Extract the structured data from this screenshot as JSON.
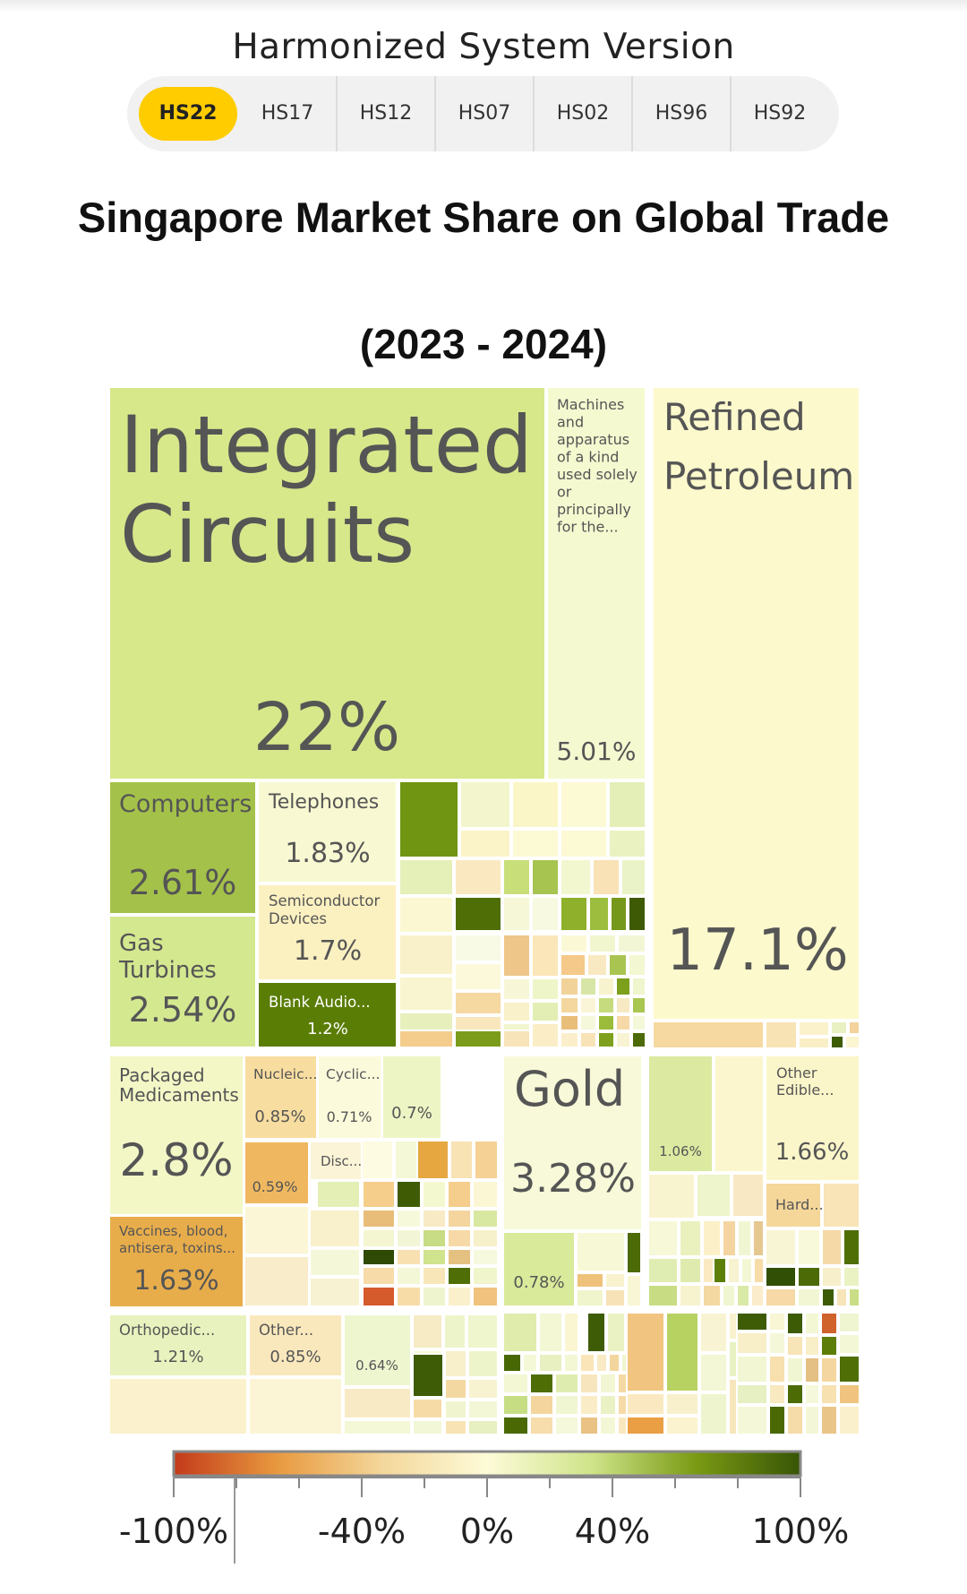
{
  "header": {
    "title": "Harmonized System Version",
    "tabs": [
      {
        "label": "HS22",
        "active": true
      },
      {
        "label": "HS17",
        "active": false
      },
      {
        "label": "HS12",
        "active": false
      },
      {
        "label": "HS07",
        "active": false
      },
      {
        "label": "HS02",
        "active": false
      },
      {
        "label": "HS96",
        "active": false
      },
      {
        "label": "HS92",
        "active": false
      }
    ],
    "active_color": "#ffcc00"
  },
  "chart": {
    "title": "Singapore Market Share on Global Trade",
    "years": "(2023 - 2024)"
  },
  "chart_data": {
    "type": "treemap",
    "color_metric_range": [
      -100,
      100
    ],
    "items": [
      {
        "name": "Integrated Circuits",
        "share": "22%",
        "color": "#d6e88a"
      },
      {
        "name": "Machines and apparatus of a kind used solely or principally for the...",
        "share": "5.01%",
        "color": "#f5f9d0"
      },
      {
        "name": "Refined Petroleum",
        "share": "17.1%",
        "color": "#fcf9cc"
      },
      {
        "name": "Computers",
        "share": "2.61%",
        "color": "#a4c24a"
      },
      {
        "name": "Telephones",
        "share": "1.83%",
        "color": "#f8f8d2"
      },
      {
        "name": "Semiconductor Devices",
        "share": "1.7%",
        "color": "#fbf0c0"
      },
      {
        "name": "Gas Turbines",
        "share": "2.54%",
        "color": "#d4e890"
      },
      {
        "name": "Blank Audio...",
        "share": "1.2%",
        "color": "#5a7d05"
      },
      {
        "name": "Packaged Medicaments",
        "share": "2.8%",
        "color": "#f3f7c6"
      },
      {
        "name": "Nucleic...",
        "share": "0.85%",
        "color": "#f8dda0"
      },
      {
        "name": "Cyclic...",
        "share": "0.71%",
        "color": "#fbfadb"
      },
      {
        "name": "",
        "share": "0.7%",
        "color": "#eef5c5"
      },
      {
        "name": "Disc...",
        "share": "",
        "color": "#fbf4d6"
      },
      {
        "name": "",
        "share": "0.59%",
        "color": "#efb860"
      },
      {
        "name": "Vaccines, blood, antisera, toxins...",
        "share": "1.63%",
        "color": "#e8ad4b"
      },
      {
        "name": "Gold",
        "share": "3.28%",
        "color": "#f8f9d8"
      },
      {
        "name": "",
        "share": "0.78%",
        "color": "#d9ea9b"
      },
      {
        "name": "",
        "share": "1.06%",
        "color": "#dbeaa0"
      },
      {
        "name": "Other Edible...",
        "share": "1.66%",
        "color": "#fbf6c9"
      },
      {
        "name": "Hard...",
        "share": "",
        "color": "#f5d79a"
      },
      {
        "name": "Orthopedic...",
        "share": "1.21%",
        "color": "#e8f2be"
      },
      {
        "name": "Other...",
        "share": "0.85%",
        "color": "#fae8bd"
      },
      {
        "name": "",
        "share": "0.64%",
        "color": "#eef6cf"
      }
    ]
  },
  "legend": {
    "tick_labels": [
      "-100%",
      "-40%",
      "0%",
      "40%",
      "100%"
    ],
    "tick_values": [
      -100,
      -40,
      0,
      40,
      100
    ],
    "minor_tick_values": [
      -80,
      -60,
      -20,
      20,
      60,
      80
    ],
    "gradient_colors": [
      "#c33a1a",
      "#e89a40",
      "#f4d79b",
      "#fdfbd8",
      "#cfe48a",
      "#7a9a14",
      "#385505"
    ]
  }
}
